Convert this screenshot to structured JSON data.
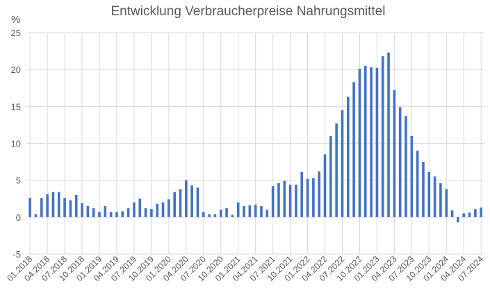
{
  "chart_data": {
    "type": "bar",
    "title": "Entwicklung Verbraucherpreise Nahrungsmittel",
    "ylabel": "%",
    "xlabel": "",
    "ylim": [
      -5,
      25
    ],
    "yticks": [
      25,
      20,
      15,
      10,
      5,
      0,
      -5
    ],
    "grid": true,
    "legend": "none",
    "bar_color": "#4472C4",
    "grid_color": "#D9D9D9",
    "text_color": "#595959",
    "categories": [
      "01.2018",
      "02.2018",
      "03.2018",
      "04.2018",
      "05.2018",
      "06.2018",
      "07.2018",
      "08.2018",
      "09.2018",
      "10.2018",
      "11.2018",
      "12.2018",
      "01.2019",
      "02.2019",
      "03.2019",
      "04.2019",
      "05.2019",
      "06.2019",
      "07.2019",
      "08.2019",
      "09.2019",
      "10.2019",
      "11.2019",
      "12.2019",
      "01.2020",
      "02.2020",
      "03.2020",
      "04.2020",
      "05.2020",
      "06.2020",
      "07.2020",
      "08.2020",
      "09.2020",
      "10.2020",
      "11.2020",
      "12.2020",
      "01.2021",
      "02.2021",
      "03.2021",
      "04.2021",
      "05.2021",
      "06.2021",
      "07.2021",
      "08.2021",
      "09.2021",
      "10.2021",
      "11.2021",
      "12.2021",
      "01.2022",
      "02.2022",
      "03.2022",
      "04.2022",
      "05.2022",
      "06.2022",
      "07.2022",
      "08.2022",
      "09.2022",
      "10.2022",
      "11.2022",
      "12.2022",
      "01.2023",
      "02.2023",
      "03.2023",
      "04.2023",
      "05.2023",
      "06.2023",
      "07.2023",
      "08.2023",
      "09.2023",
      "10.2023",
      "11.2023",
      "12.2023",
      "01.2024",
      "02.2024",
      "03.2024",
      "04.2024",
      "05.2024",
      "06.2024",
      "07.2024"
    ],
    "x_tick_labels": [
      "01.2018",
      "04.2018",
      "07.2018",
      "10.2018",
      "01.2019",
      "04.2019",
      "07.2019",
      "10.2019",
      "01.2020",
      "04.2020",
      "07.2020",
      "10.2020",
      "01.2021",
      "04.2021",
      "07.2021",
      "10.2021",
      "01.2022",
      "04.2022",
      "07.2022",
      "10.2022",
      "01.2023",
      "04.2023",
      "07.2023",
      "10.2023",
      "01.2024",
      "04.2024",
      "07.2024"
    ],
    "series": [
      {
        "values": [
          2.6,
          0.4,
          2.6,
          3.1,
          3.4,
          3.4,
          2.6,
          2.3,
          3.0,
          1.9,
          1.5,
          1.2,
          0.7,
          1.5,
          0.7,
          0.7,
          0.8,
          1.2,
          2.0,
          2.5,
          1.2,
          1.1,
          1.8,
          2.0,
          2.4,
          3.4,
          3.8,
          5.0,
          4.3,
          4.0,
          0.7,
          0.4,
          0.4,
          1.0,
          1.2,
          0.3,
          2.0,
          1.5,
          1.6,
          1.7,
          1.5,
          1.0,
          4.2,
          4.6,
          4.9,
          4.4,
          4.4,
          6.1,
          5.2,
          5.3,
          6.2,
          8.5,
          11.0,
          12.7,
          14.5,
          16.3,
          18.3,
          20.1,
          20.5,
          20.3,
          20.2,
          21.8,
          22.3,
          17.2,
          14.9,
          13.7,
          11.0,
          9.0,
          7.5,
          6.1,
          5.5,
          4.6,
          3.8,
          0.9,
          -0.7,
          0.5,
          0.6,
          1.1,
          1.3
        ]
      }
    ]
  }
}
